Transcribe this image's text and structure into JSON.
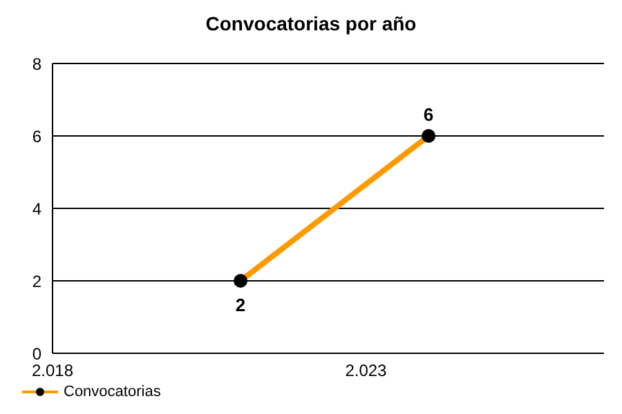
{
  "chart_data": {
    "type": "line",
    "title": "Convocatorias por año",
    "x": [
      2021,
      2024
    ],
    "series": [
      {
        "name": "Convocatorias",
        "color": "#ff9900",
        "values": [
          2,
          6
        ]
      }
    ],
    "xlim": [
      2018,
      2026.8
    ],
    "xticks": [
      {
        "value": 2018,
        "label": "2.018"
      },
      {
        "value": 2023,
        "label": "2.023"
      }
    ],
    "ylim": [
      0,
      8
    ],
    "yticks": [
      0,
      2,
      4,
      6,
      8
    ],
    "grid": "y",
    "legend": "bottom left",
    "marker": "circle",
    "line_style": "solid",
    "data_labels": true
  }
}
